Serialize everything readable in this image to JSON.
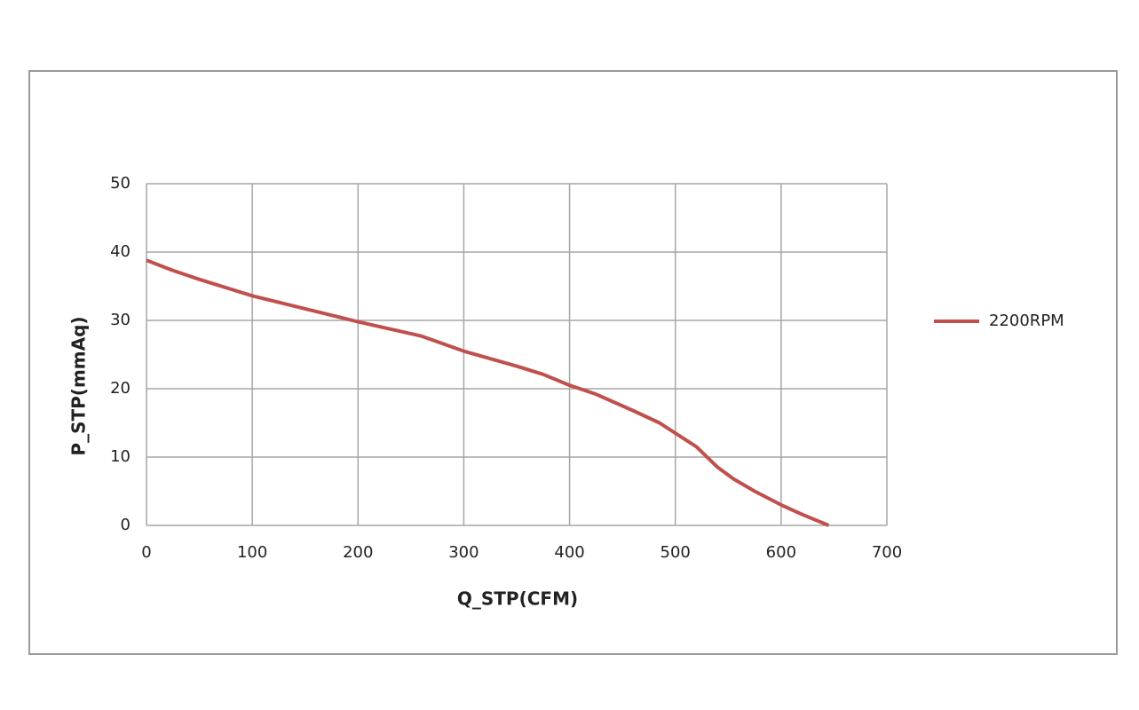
{
  "chart_data": {
    "type": "line",
    "x_label": "Q_STP(CFM)",
    "y_label": "P_STP(mmAq)",
    "x": [
      0,
      25,
      50,
      100,
      150,
      200,
      260,
      300,
      350,
      375,
      400,
      425,
      460,
      485,
      500,
      520,
      540,
      555,
      575,
      600,
      620,
      645
    ],
    "series": [
      {
        "name": "2200RPM",
        "color": "#c0504d",
        "values": [
          38.8,
          37.3,
          36.0,
          33.6,
          31.7,
          29.8,
          27.7,
          25.5,
          23.3,
          22.1,
          20.5,
          19.2,
          16.8,
          15.0,
          13.5,
          11.5,
          8.5,
          6.8,
          5.0,
          3.0,
          1.6,
          0
        ]
      }
    ],
    "xlim": [
      0,
      700
    ],
    "xticks": [
      0,
      100,
      200,
      300,
      400,
      500,
      600,
      700
    ],
    "ylim": [
      0,
      50
    ],
    "yticks": [
      0,
      10,
      20,
      30,
      40,
      50
    ],
    "grid": true,
    "legend": "right"
  }
}
